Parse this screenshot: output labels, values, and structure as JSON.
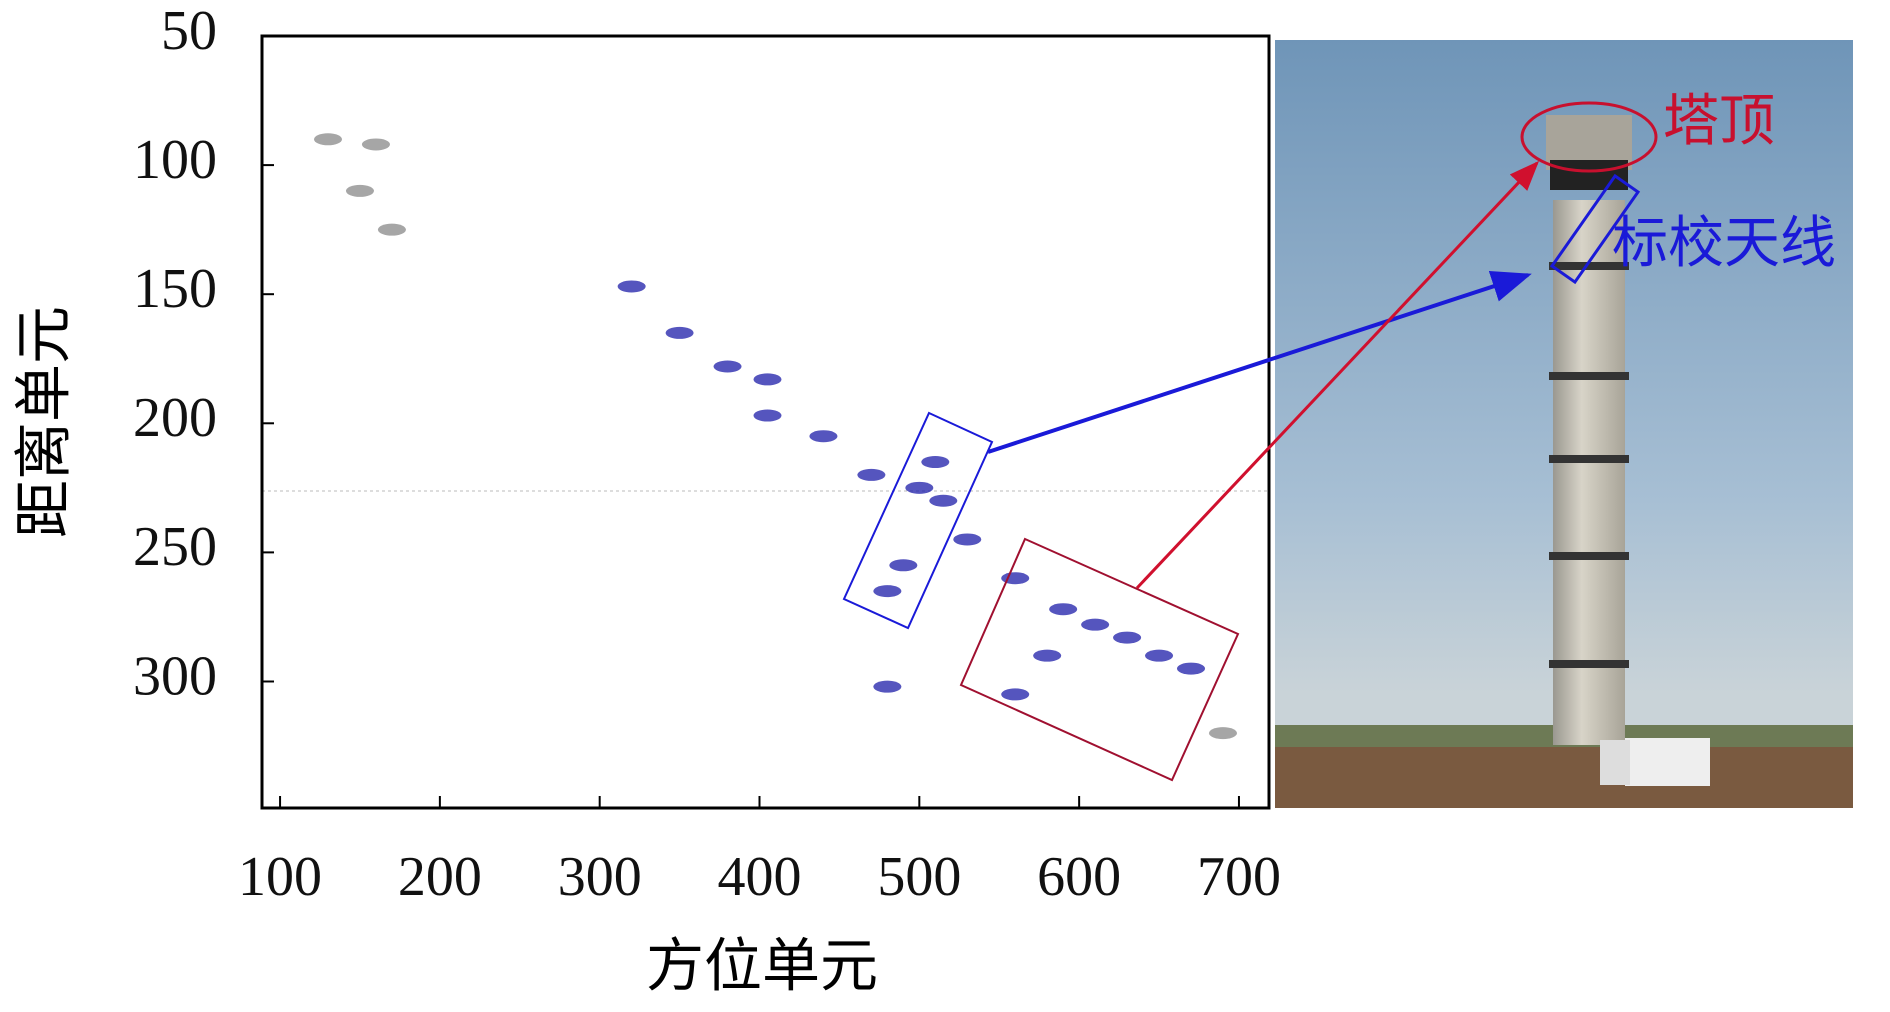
{
  "chart_data": {
    "type": "scatter",
    "xlabel": "方位单元",
    "ylabel": "距离单元",
    "xlim": [
      88.7,
      718.8
    ],
    "ylim": [
      50,
      349
    ],
    "y_inverted": true,
    "xticks": [
      100,
      200,
      300,
      400,
      500,
      600,
      700
    ],
    "yticks": [
      50,
      100,
      150,
      200,
      250,
      300
    ],
    "series": [
      {
        "color": "#1c1ca8",
        "x": [
          320,
          350,
          380,
          405,
          405,
          440,
          470,
          500,
          510,
          515,
          490,
          480,
          530,
          560,
          590,
          610,
          630,
          650,
          670,
          580,
          560,
          480
        ],
        "y": [
          147,
          165,
          178,
          183,
          197,
          205,
          220,
          225,
          215,
          230,
          255,
          265,
          245,
          260,
          272,
          278,
          283,
          290,
          295,
          290,
          305,
          302
        ]
      },
      {
        "color": "#888888",
        "x": [
          130,
          160,
          150,
          170,
          690
        ],
        "y": [
          90,
          92,
          110,
          125,
          320
        ]
      }
    ],
    "annotations": [
      {
        "text": "塔顶",
        "color": "#c8102e"
      },
      {
        "text": "标校天线",
        "color": "#1a1ad8"
      }
    ]
  }
}
